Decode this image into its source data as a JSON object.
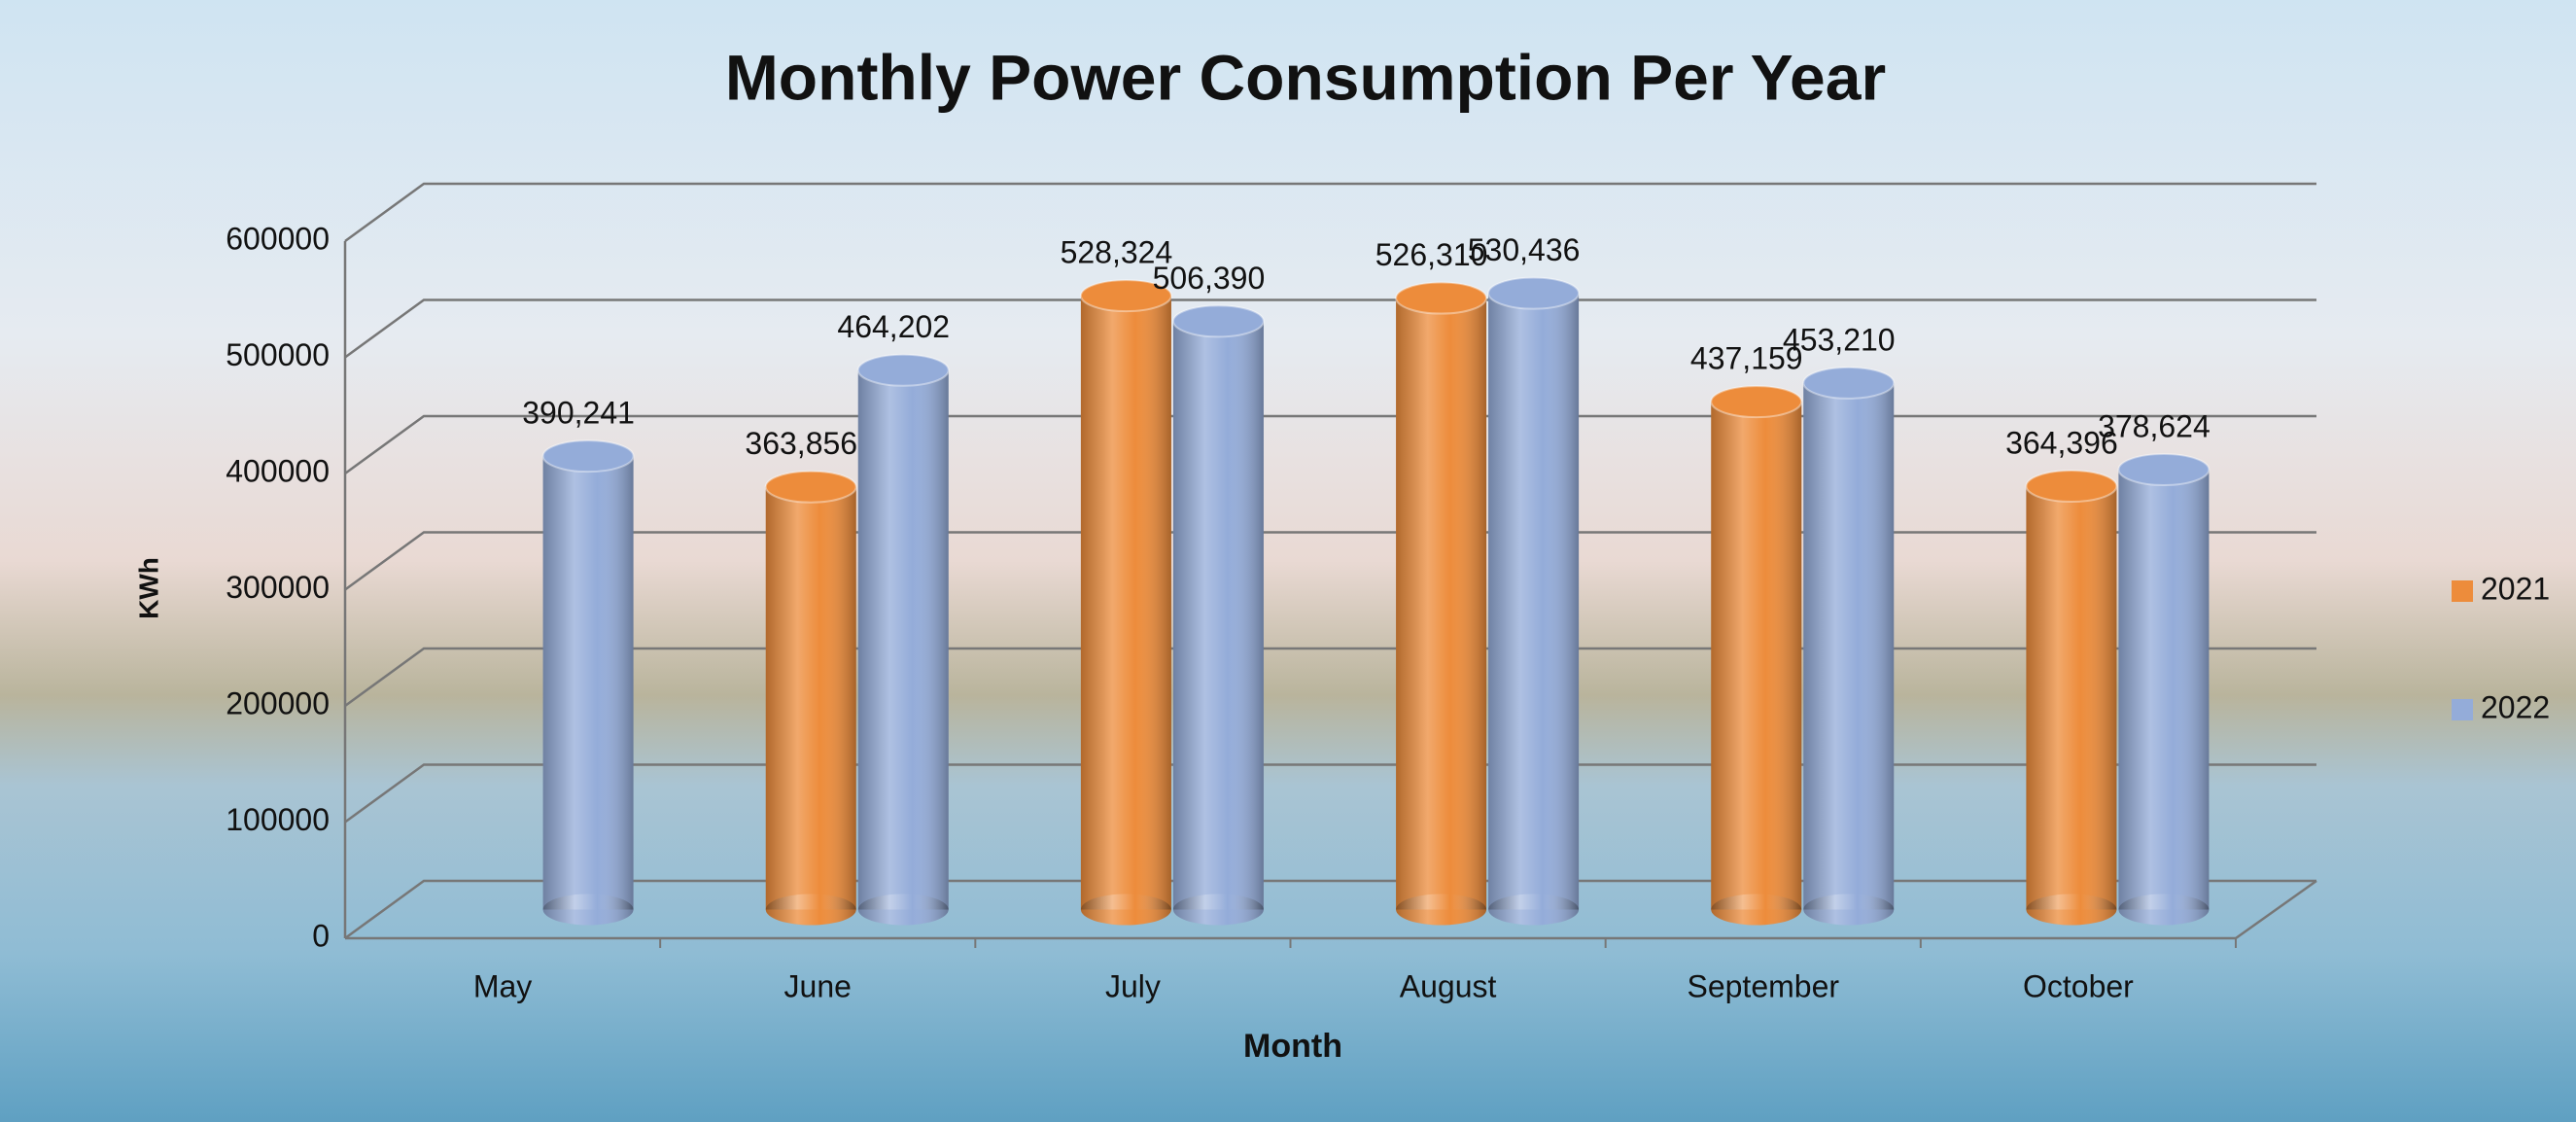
{
  "chart_data": {
    "type": "bar",
    "title": "Monthly Power Consumption Per Year",
    "x_label": "Month",
    "y_label": "KWh",
    "categories": [
      "May",
      "June",
      "July",
      "August",
      "September",
      "October"
    ],
    "series": [
      {
        "name": "2021",
        "color": "#ed8c3b",
        "values": [
          null,
          363856,
          528324,
          526310,
          437159,
          364396
        ],
        "value_labels": [
          null,
          "363,856",
          "528,324",
          "526,310",
          "437,159",
          "364,396"
        ]
      },
      {
        "name": "2022",
        "color": "#94acd9",
        "values": [
          390241,
          464202,
          506390,
          530436,
          453210,
          378624
        ],
        "value_labels": [
          "390,241",
          "464,202",
          "506,390",
          "530,436",
          "453,210",
          "378,624"
        ]
      }
    ],
    "ylim": [
      0,
      600000
    ],
    "yticks": [
      0,
      100000,
      200000,
      300000,
      400000,
      500000,
      600000
    ],
    "grid": true,
    "legend": "right"
  }
}
